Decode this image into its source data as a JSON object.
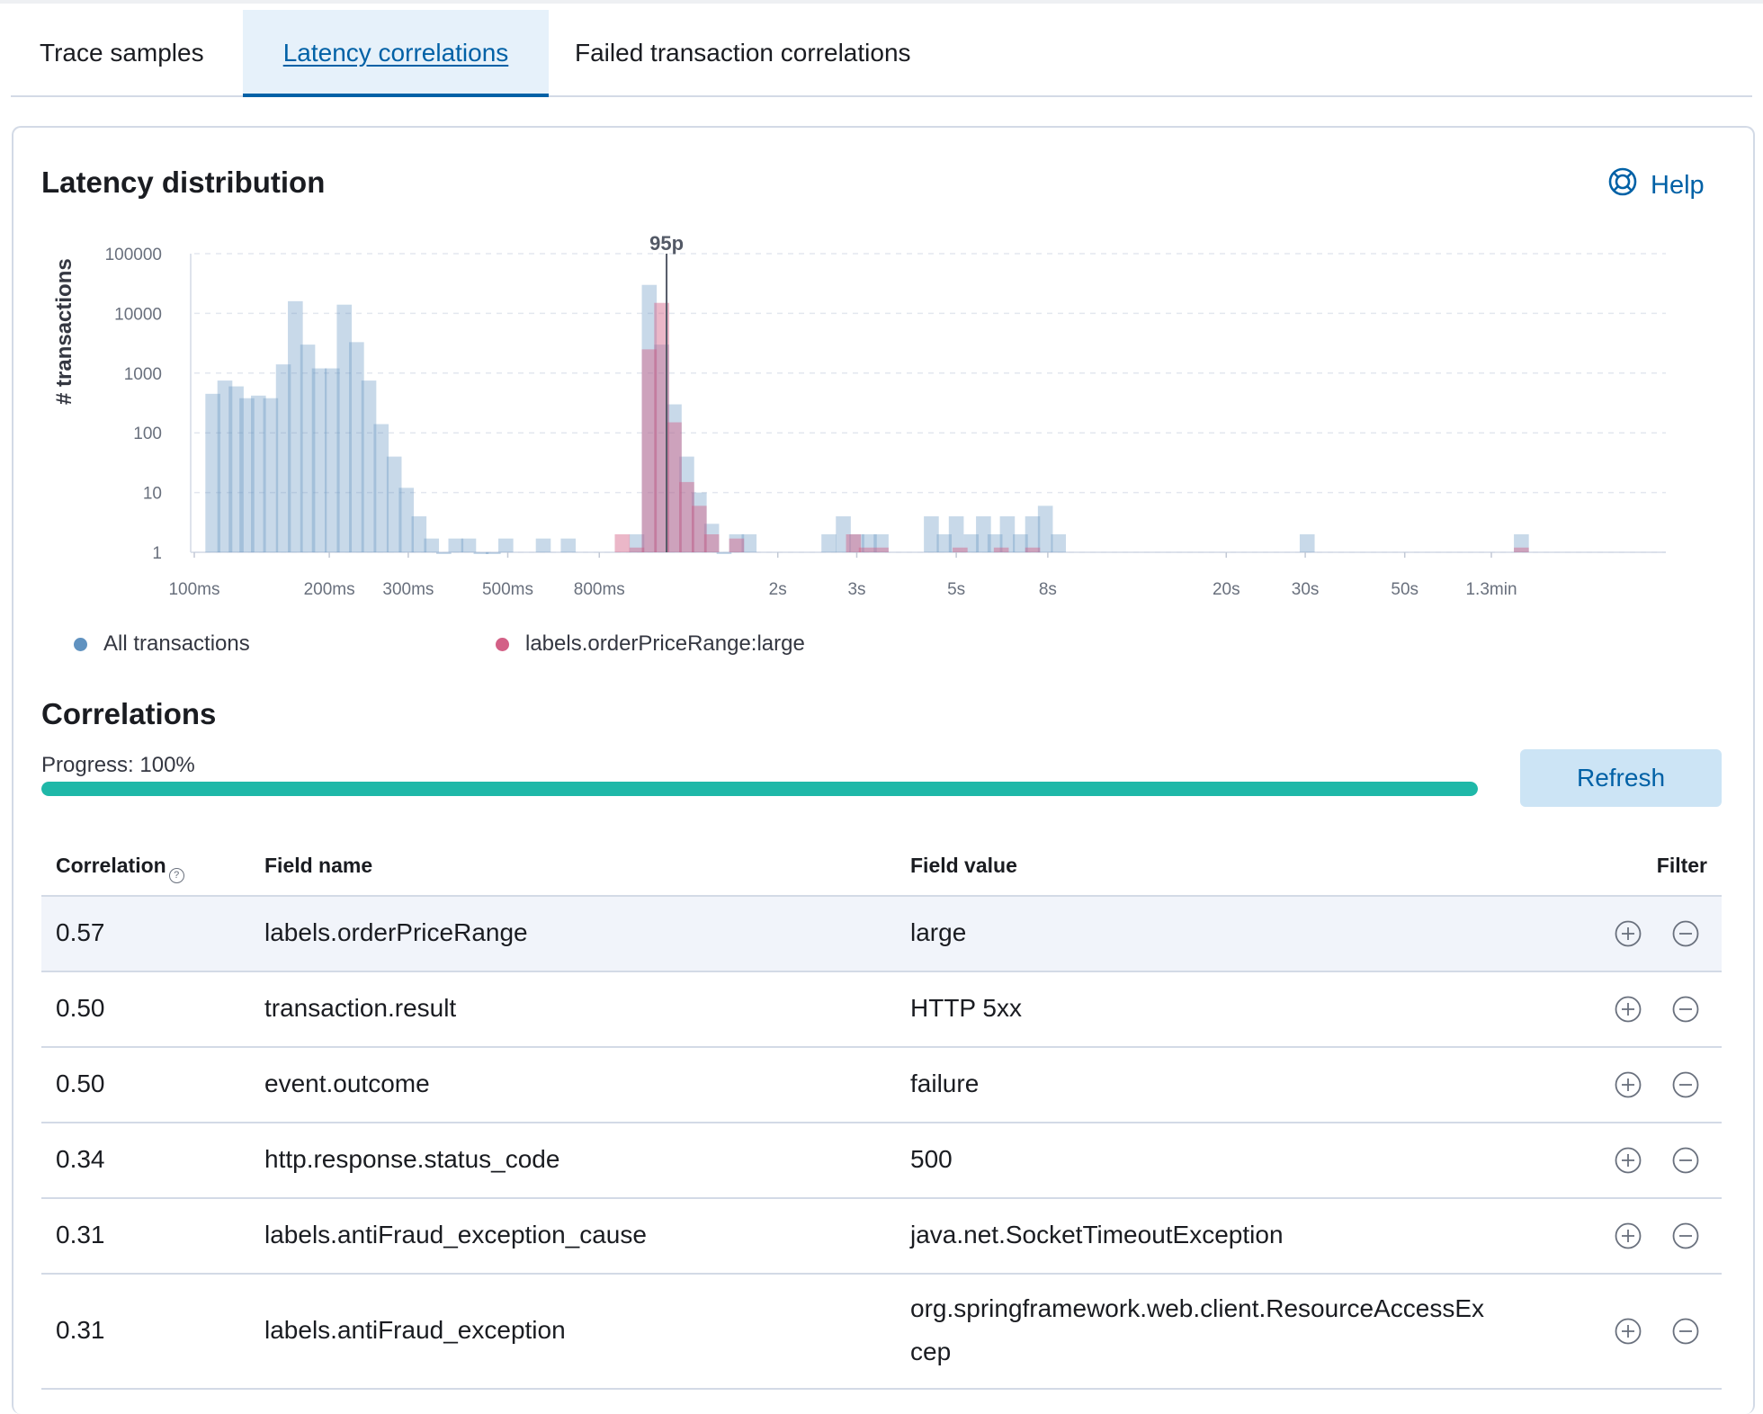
{
  "tabs": [
    {
      "label": "Trace samples",
      "active": false
    },
    {
      "label": "Latency correlations",
      "active": true
    },
    {
      "label": "Failed transaction correlations",
      "active": false
    }
  ],
  "latency": {
    "title": "Latency distribution",
    "help_label": "Help",
    "help_icon": "lifebuoy-icon"
  },
  "chart_data": {
    "type": "bar",
    "y_label": "# transactions",
    "y_scale": "log",
    "y_ticks": [
      "100000",
      "10000",
      "1000",
      "100",
      "10",
      "1"
    ],
    "x_scale": "log",
    "x_ticks": [
      "100ms",
      "200ms",
      "300ms",
      "500ms",
      "800ms",
      "2s",
      "3s",
      "5s",
      "8s",
      "20s",
      "30s",
      "50s",
      "1.3min"
    ],
    "x_tick_values_ms": [
      100,
      200,
      300,
      500,
      800,
      2000,
      3000,
      5000,
      8000,
      20000,
      30000,
      50000,
      78000
    ],
    "annotation": {
      "label": "95p",
      "x_ms": 1130
    },
    "grid": true,
    "colors": {
      "all": "#6092c0",
      "subset": "#d36086"
    },
    "series": [
      {
        "name": "All transactions",
        "bins": [
          {
            "x_ms": 110,
            "count": 450
          },
          {
            "x_ms": 117,
            "count": 750
          },
          {
            "x_ms": 124,
            "count": 600
          },
          {
            "x_ms": 131,
            "count": 380
          },
          {
            "x_ms": 139,
            "count": 420
          },
          {
            "x_ms": 148,
            "count": 380
          },
          {
            "x_ms": 158,
            "count": 1400
          },
          {
            "x_ms": 168,
            "count": 16000
          },
          {
            "x_ms": 179,
            "count": 3000
          },
          {
            "x_ms": 190,
            "count": 1200
          },
          {
            "x_ms": 203,
            "count": 1200
          },
          {
            "x_ms": 216,
            "count": 14000
          },
          {
            "x_ms": 230,
            "count": 3300
          },
          {
            "x_ms": 245,
            "count": 750
          },
          {
            "x_ms": 261,
            "count": 140
          },
          {
            "x_ms": 279,
            "count": 40
          },
          {
            "x_ms": 297,
            "count": 12
          },
          {
            "x_ms": 317,
            "count": 4
          },
          {
            "x_ms": 338,
            "count": 1.7
          },
          {
            "x_ms": 360,
            "count": 1.0
          },
          {
            "x_ms": 383,
            "count": 1.7
          },
          {
            "x_ms": 409,
            "count": 1.7
          },
          {
            "x_ms": 436,
            "count": 1.0
          },
          {
            "x_ms": 464,
            "count": 1.0
          },
          {
            "x_ms": 495,
            "count": 1.7
          },
          {
            "x_ms": 600,
            "count": 1.7
          },
          {
            "x_ms": 682,
            "count": 1.7
          },
          {
            "x_ms": 970,
            "count": 2.0
          },
          {
            "x_ms": 1034,
            "count": 30000
          },
          {
            "x_ms": 1102,
            "count": 3000
          },
          {
            "x_ms": 1175,
            "count": 300
          },
          {
            "x_ms": 1253,
            "count": 40
          },
          {
            "x_ms": 1336,
            "count": 10
          },
          {
            "x_ms": 1424,
            "count": 3.0
          },
          {
            "x_ms": 1518,
            "count": 1.0
          },
          {
            "x_ms": 1619,
            "count": 2.0
          },
          {
            "x_ms": 1726,
            "count": 2.0
          },
          {
            "x_ms": 2600,
            "count": 2.0
          },
          {
            "x_ms": 2800,
            "count": 4.0
          },
          {
            "x_ms": 3000,
            "count": 2.0
          },
          {
            "x_ms": 3200,
            "count": 2.0
          },
          {
            "x_ms": 3400,
            "count": 2.0
          },
          {
            "x_ms": 4400,
            "count": 4.0
          },
          {
            "x_ms": 4700,
            "count": 2.0
          },
          {
            "x_ms": 5000,
            "count": 4.0
          },
          {
            "x_ms": 5400,
            "count": 2.0
          },
          {
            "x_ms": 5750,
            "count": 4.0
          },
          {
            "x_ms": 6100,
            "count": 2.0
          },
          {
            "x_ms": 6500,
            "count": 4.0
          },
          {
            "x_ms": 6950,
            "count": 2.0
          },
          {
            "x_ms": 7400,
            "count": 4.0
          },
          {
            "x_ms": 7900,
            "count": 6.0
          },
          {
            "x_ms": 8450,
            "count": 2.0
          },
          {
            "x_ms": 30300,
            "count": 2.0
          },
          {
            "x_ms": 91000,
            "count": 2.0
          }
        ]
      },
      {
        "name": "labels.orderPriceRange:large",
        "bins": [
          {
            "x_ms": 900,
            "count": 2.0
          },
          {
            "x_ms": 970,
            "count": 1.2
          },
          {
            "x_ms": 1034,
            "count": 2500
          },
          {
            "x_ms": 1102,
            "count": 15000
          },
          {
            "x_ms": 1175,
            "count": 150
          },
          {
            "x_ms": 1253,
            "count": 15
          },
          {
            "x_ms": 1336,
            "count": 6
          },
          {
            "x_ms": 1424,
            "count": 2
          },
          {
            "x_ms": 1619,
            "count": 1.7
          },
          {
            "x_ms": 2950,
            "count": 2.0
          },
          {
            "x_ms": 3150,
            "count": 1.2
          },
          {
            "x_ms": 3400,
            "count": 1.2
          },
          {
            "x_ms": 5100,
            "count": 1.2
          },
          {
            "x_ms": 6300,
            "count": 1.2
          },
          {
            "x_ms": 7400,
            "count": 1.2
          },
          {
            "x_ms": 91000,
            "count": 1.2
          }
        ]
      }
    ]
  },
  "legend": [
    {
      "label": "All transactions",
      "color": "#6092c0"
    },
    {
      "label": "labels.orderPriceRange:large",
      "color": "#d36086"
    }
  ],
  "correlations": {
    "title": "Correlations",
    "progress_label": "Progress: 100%",
    "progress_value": 1.0,
    "refresh_label": "Refresh",
    "columns": {
      "correlation": "Correlation",
      "field_name": "Field name",
      "field_value": "Field value",
      "filter": "Filter"
    },
    "rows": [
      {
        "correlation": "0.57",
        "field_name": "labels.orderPriceRange",
        "field_value_line1": "large",
        "field_value_line2": ""
      },
      {
        "correlation": "0.50",
        "field_name": "transaction.result",
        "field_value_line1": "HTTP 5xx",
        "field_value_line2": ""
      },
      {
        "correlation": "0.50",
        "field_name": "event.outcome",
        "field_value_line1": "failure",
        "field_value_line2": ""
      },
      {
        "correlation": "0.34",
        "field_name": "http.response.status_code",
        "field_value_line1": "500",
        "field_value_line2": ""
      },
      {
        "correlation": "0.31",
        "field_name": "labels.antiFraud_exception_cause",
        "field_value_line1": "java.net.SocketTimeoutException",
        "field_value_line2": ""
      },
      {
        "correlation": "0.31",
        "field_name": "labels.antiFraud_exception",
        "field_value_line1": "org.springframework.web.client.ResourceAccessEx",
        "field_value_line2": "cep"
      }
    ]
  }
}
